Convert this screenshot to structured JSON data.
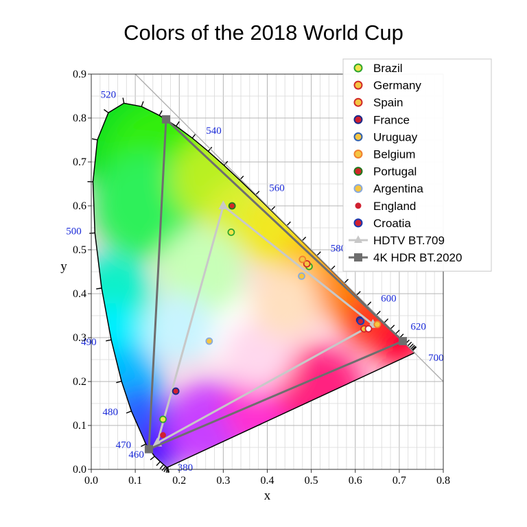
{
  "title": "Colors of the 2018 World Cup",
  "chart_data": {
    "type": "scatter",
    "xlabel": "x",
    "ylabel": "y",
    "xlim": [
      0.0,
      0.8
    ],
    "ylim": [
      0.0,
      0.9
    ],
    "x_ticks": [
      "0.0",
      "0.1",
      "0.2",
      "0.3",
      "0.4",
      "0.5",
      "0.6",
      "0.7",
      "0.8"
    ],
    "y_ticks": [
      "0.0",
      "0.1",
      "0.2",
      "0.3",
      "0.4",
      "0.5",
      "0.6",
      "0.7",
      "0.8",
      "0.9"
    ],
    "grid": true,
    "legend_position": "top-right",
    "spectral_locus": [
      [
        0.1741,
        0.005
      ],
      [
        0.1738,
        0.0049
      ],
      [
        0.1733,
        0.0048
      ],
      [
        0.1726,
        0.0048
      ],
      [
        0.1714,
        0.0051
      ],
      [
        0.1689,
        0.0069
      ],
      [
        0.1644,
        0.0109
      ],
      [
        0.1566,
        0.0177
      ],
      [
        0.144,
        0.0297
      ],
      [
        0.1241,
        0.0578
      ],
      [
        0.0913,
        0.1327
      ],
      [
        0.0687,
        0.2007
      ],
      [
        0.0454,
        0.295
      ],
      [
        0.0235,
        0.4127
      ],
      [
        0.0082,
        0.5384
      ],
      [
        0.0039,
        0.6548
      ],
      [
        0.0139,
        0.7502
      ],
      [
        0.0389,
        0.812
      ],
      [
        0.0743,
        0.8338
      ],
      [
        0.1142,
        0.8262
      ],
      [
        0.1547,
        0.8059
      ],
      [
        0.1929,
        0.7816
      ],
      [
        0.2296,
        0.7543
      ],
      [
        0.2658,
        0.7243
      ],
      [
        0.3016,
        0.6923
      ],
      [
        0.3373,
        0.6589
      ],
      [
        0.3731,
        0.6245
      ],
      [
        0.4087,
        0.5896
      ],
      [
        0.4441,
        0.5547
      ],
      [
        0.4788,
        0.5202
      ],
      [
        0.5125,
        0.4866
      ],
      [
        0.5448,
        0.4544
      ],
      [
        0.5752,
        0.4242
      ],
      [
        0.6029,
        0.3965
      ],
      [
        0.627,
        0.3725
      ],
      [
        0.6482,
        0.3514
      ],
      [
        0.6658,
        0.334
      ],
      [
        0.6801,
        0.3197
      ],
      [
        0.6915,
        0.3083
      ],
      [
        0.7006,
        0.2993
      ],
      [
        0.7079,
        0.292
      ],
      [
        0.714,
        0.2859
      ],
      [
        0.719,
        0.2809
      ],
      [
        0.723,
        0.277
      ],
      [
        0.726,
        0.274
      ],
      [
        0.7283,
        0.2717
      ],
      [
        0.73,
        0.27
      ],
      [
        0.7347,
        0.2653
      ]
    ],
    "wavelength_labels": [
      {
        "label": "380",
        "x": 0.1741,
        "y": 0.005
      },
      {
        "label": "460",
        "x": 0.144,
        "y": 0.0297
      },
      {
        "label": "470",
        "x": 0.1241,
        "y": 0.0578
      },
      {
        "label": "480",
        "x": 0.0913,
        "y": 0.1327
      },
      {
        "label": "490",
        "x": 0.0454,
        "y": 0.295
      },
      {
        "label": "500",
        "x": 0.0082,
        "y": 0.5384
      },
      {
        "label": "520",
        "x": 0.0743,
        "y": 0.8338
      },
      {
        "label": "540",
        "x": 0.2296,
        "y": 0.7543
      },
      {
        "label": "560",
        "x": 0.3731,
        "y": 0.6245
      },
      {
        "label": "580",
        "x": 0.5125,
        "y": 0.4866
      },
      {
        "label": "600",
        "x": 0.627,
        "y": 0.3725
      },
      {
        "label": "620",
        "x": 0.6915,
        "y": 0.3083
      },
      {
        "label": "700",
        "x": 0.7347,
        "y": 0.2653
      }
    ],
    "gamut_series": [
      {
        "name": "HDTV BT.709",
        "marker": "triangle",
        "color": "#c8c8c8",
        "points": [
          [
            0.64,
            0.33
          ],
          [
            0.3,
            0.6
          ],
          [
            0.15,
            0.06
          ]
        ]
      },
      {
        "name": "4K HDR BT.2020",
        "marker": "square",
        "color": "#6e6e6e",
        "points": [
          [
            0.708,
            0.292
          ],
          [
            0.17,
            0.797
          ],
          [
            0.131,
            0.046
          ]
        ]
      }
    ],
    "series": [
      {
        "name": "Brazil",
        "marker": "circle",
        "fill": "#f2e34a",
        "edge": "#2ea62e",
        "points": [
          [
            0.495,
            0.462
          ],
          [
            0.318,
            0.54
          ],
          [
            0.163,
            0.114
          ]
        ]
      },
      {
        "name": "Germany",
        "marker": "circle",
        "fill": "#f5c542",
        "edge": "#d02828",
        "points": [
          [
            0.49,
            0.468
          ]
        ]
      },
      {
        "name": "Spain",
        "marker": "circle",
        "fill": "#f5c542",
        "edge": "#d02828",
        "points": [
          [
            0.62,
            0.32
          ]
        ]
      },
      {
        "name": "France",
        "marker": "circle",
        "fill": "#d02030",
        "edge": "#1a2a8a",
        "points": [
          [
            0.61,
            0.34
          ],
          [
            0.192,
            0.178
          ]
        ]
      },
      {
        "name": "Uruguay",
        "marker": "circle",
        "fill": "#f5c542",
        "edge": "#3060b0",
        "points": [
          [
            0.613,
            0.337
          ]
        ]
      },
      {
        "name": "Belgium",
        "marker": "circle",
        "fill": "#f5c542",
        "edge": "#f08030",
        "points": [
          [
            0.48,
            0.478
          ],
          [
            0.65,
            0.33
          ]
        ]
      },
      {
        "name": "Portugal",
        "marker": "circle",
        "fill": "#d02828",
        "edge": "#1e7a1e",
        "points": [
          [
            0.32,
            0.6
          ]
        ]
      },
      {
        "name": "Argentina",
        "marker": "circle",
        "fill": "#f5c542",
        "edge": "#88aadd",
        "points": [
          [
            0.268,
            0.292
          ],
          [
            0.478,
            0.44
          ]
        ]
      },
      {
        "name": "England",
        "marker": "circle",
        "fill": "#d02030",
        "edge": "#d02030",
        "points": [
          [
            0.163,
            0.078
          ]
        ]
      },
      {
        "name": "Croatia",
        "marker": "circle",
        "fill": "#d02030",
        "edge": "#1a3ab0",
        "points": [
          [
            0.612,
            0.337
          ]
        ]
      }
    ],
    "white_points": [
      [
        0.63,
        0.32
      ]
    ]
  }
}
